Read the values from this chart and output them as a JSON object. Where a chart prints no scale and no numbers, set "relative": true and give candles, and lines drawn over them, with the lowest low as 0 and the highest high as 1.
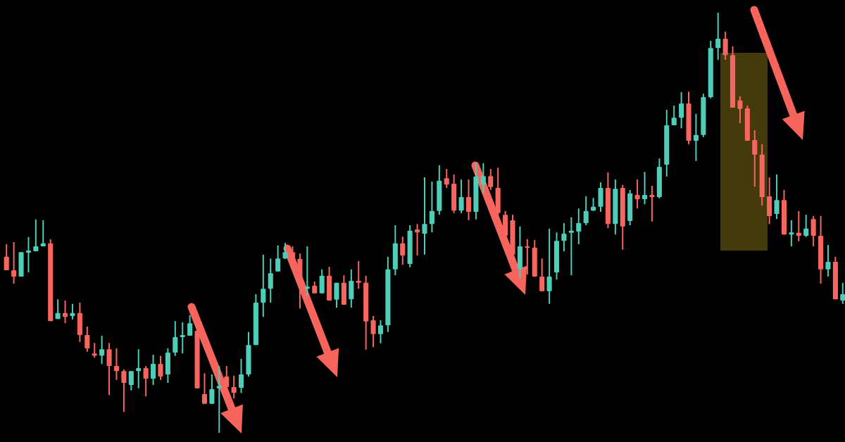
{
  "chart_data": {
    "type": "candlestick",
    "relative": true,
    "categories": [
      null,
      null,
      null,
      null,
      null,
      null,
      null,
      null,
      null,
      null,
      null,
      null,
      null,
      null,
      null,
      null,
      null,
      null,
      null,
      null,
      null,
      null,
      null,
      null,
      null,
      null,
      null,
      null,
      null,
      null,
      null,
      null,
      null,
      null,
      null,
      null,
      null,
      null,
      null,
      null,
      null,
      null,
      null,
      null,
      null,
      null,
      null,
      null,
      null,
      null,
      null,
      null,
      null,
      null,
      null,
      null,
      null,
      null,
      null,
      null,
      null,
      null,
      null,
      null,
      null,
      null,
      null,
      null,
      null,
      null,
      null,
      null,
      null,
      null,
      null,
      null,
      null,
      null,
      null,
      null,
      null,
      null,
      null,
      null,
      null,
      null,
      null,
      null,
      null,
      null,
      null,
      null,
      null,
      null,
      null,
      null,
      null,
      null,
      null,
      null,
      null,
      null,
      null,
      null,
      null,
      null,
      null,
      null,
      null,
      null,
      null,
      null,
      null,
      null,
      null
    ],
    "ohlc": [
      [
        0.419,
        0.449,
        0.387,
        0.387
      ],
      [
        0.387,
        0.454,
        0.355,
        0.372
      ],
      [
        0.372,
        0.43,
        0.372,
        0.43
      ],
      [
        0.429,
        0.466,
        0.382,
        0.434
      ],
      [
        0.432,
        0.508,
        0.432,
        0.444
      ],
      [
        0.444,
        0.506,
        0.444,
        0.451
      ],
      [
        0.451,
        0.461,
        0.266,
        0.266
      ],
      [
        0.271,
        0.318,
        0.271,
        0.285
      ],
      [
        0.285,
        0.315,
        0.261,
        0.276
      ],
      [
        0.278,
        0.307,
        0.27,
        0.285
      ],
      [
        0.285,
        0.31,
        0.216,
        0.233
      ],
      [
        0.233,
        0.253,
        0.193,
        0.201
      ],
      [
        0.189,
        0.214,
        0.179,
        0.184
      ],
      [
        0.184,
        0.231,
        0.164,
        0.199
      ],
      [
        0.199,
        0.214,
        0.09,
        0.159
      ],
      [
        0.159,
        0.201,
        0.126,
        0.147
      ],
      [
        0.147,
        0.151,
        0.05,
        0.119
      ],
      [
        0.114,
        0.147,
        0.101,
        0.147
      ],
      [
        0.147,
        0.199,
        0.106,
        0.154
      ],
      [
        0.154,
        0.159,
        0.087,
        0.129
      ],
      [
        0.129,
        0.186,
        0.114,
        0.164
      ],
      [
        0.164,
        0.183,
        0.126,
        0.134
      ],
      [
        0.139,
        0.201,
        0.119,
        0.191
      ],
      [
        0.191,
        0.266,
        0.183,
        0.228
      ],
      [
        0.228,
        0.263,
        0.189,
        0.233
      ],
      [
        0.231,
        0.28,
        0.231,
        0.261
      ],
      [
        0.243,
        0.26,
        0.106,
        0.106
      ],
      [
        0.092,
        0.142,
        0.069,
        0.069
      ],
      [
        0.069,
        0.139,
        0.069,
        0.104
      ],
      [
        0.106,
        0.159,
        0,
        0.112
      ],
      [
        0.134,
        0.159,
        0.092,
        0.109
      ],
      [
        0.109,
        0.136,
        0.082,
        0.095
      ],
      [
        0.107,
        0.176,
        0.095,
        0.139
      ],
      [
        0.139,
        0.24,
        0.134,
        0.209
      ],
      [
        0.209,
        0.33,
        0.209,
        0.31
      ],
      [
        0.31,
        0.424,
        0.276,
        0.343
      ],
      [
        0.343,
        0.415,
        0.31,
        0.38
      ],
      [
        0.384,
        0.446,
        0.384,
        0.415
      ],
      [
        0.415,
        0.452,
        0.414,
        0.43
      ],
      [
        0.43,
        0.444,
        0.41,
        0.414
      ],
      [
        0.414,
        0.427,
        0.296,
        0.352
      ],
      [
        0.343,
        0.444,
        0.327,
        0.348
      ],
      [
        0.35,
        0.36,
        0.332,
        0.332
      ],
      [
        0.332,
        0.389,
        0.332,
        0.374
      ],
      [
        0.374,
        0.395,
        0.315,
        0.315
      ],
      [
        0.317,
        0.357,
        0.298,
        0.357
      ],
      [
        0.357,
        0.375,
        0.305,
        0.305
      ],
      [
        0.318,
        0.389,
        0.298,
        0.362
      ],
      [
        0.362,
        0.409,
        0.343,
        0.357
      ],
      [
        0.357,
        0.374,
        0.198,
        0.265
      ],
      [
        0.268,
        0.278,
        0.204,
        0.235
      ],
      [
        0.235,
        0.268,
        0.213,
        0.256
      ],
      [
        0.256,
        0.419,
        0.24,
        0.389
      ],
      [
        0.389,
        0.494,
        0.375,
        0.451
      ],
      [
        0.451,
        0.467,
        0.4,
        0.422
      ],
      [
        0.402,
        0.494,
        0.394,
        0.481
      ],
      [
        0.484,
        0.497,
        0.422,
        0.477
      ],
      [
        0.474,
        0.608,
        0.424,
        0.497
      ],
      [
        0.497,
        0.598,
        0.477,
        0.528
      ],
      [
        0.528,
        0.637,
        0.519,
        0.6
      ],
      [
        0.606,
        0.628,
        0.583,
        0.591
      ],
      [
        0.593,
        0.615,
        0.523,
        0.529
      ],
      [
        0.529,
        0.603,
        0.523,
        0.561
      ],
      [
        0.561,
        0.603,
        0.506,
        0.526
      ],
      [
        0.526,
        0.642,
        0.508,
        0.61
      ],
      [
        0.591,
        0.642,
        0.57,
        0.611
      ],
      [
        0.611,
        0.628,
        0.578,
        0.585
      ],
      [
        0.583,
        0.631,
        0.519,
        0.523
      ],
      [
        0.519,
        0.528,
        0.461,
        0.469
      ],
      [
        0.506,
        0.519,
        0.397,
        0.424
      ],
      [
        0.389,
        0.491,
        0.369,
        0.444
      ],
      [
        0.444,
        0.461,
        0.377,
        0.441
      ],
      [
        0.441,
        0.459,
        0.372,
        0.372
      ],
      [
        0.372,
        0.415,
        0.337,
        0.337
      ],
      [
        0.337,
        0.486,
        0.307,
        0.372
      ],
      [
        0.382,
        0.477,
        0.365,
        0.457
      ],
      [
        0.457,
        0.499,
        0.432,
        0.474
      ],
      [
        0.476,
        0.513,
        0.375,
        0.481
      ],
      [
        0.479,
        0.534,
        0.449,
        0.499
      ],
      [
        0.499,
        0.563,
        0.494,
        0.528
      ],
      [
        0.529,
        0.559,
        0.528,
        0.538
      ],
      [
        0.538,
        0.596,
        0.526,
        0.583
      ],
      [
        0.583,
        0.62,
        0.487,
        0.497
      ],
      [
        0.497,
        0.603,
        0.472,
        0.581
      ],
      [
        0.583,
        0.59,
        0.436,
        0.491
      ],
      [
        0.504,
        0.578,
        0.494,
        0.57
      ],
      [
        0.566,
        0.603,
        0.534,
        0.556
      ],
      [
        0.556,
        0.621,
        0.544,
        0.566
      ],
      [
        0.566,
        0.588,
        0.503,
        0.561
      ],
      [
        0.561,
        0.653,
        0.558,
        0.633
      ],
      [
        0.638,
        0.769,
        0.61,
        0.732
      ],
      [
        0.732,
        0.779,
        0.732,
        0.75
      ],
      [
        0.75,
        0.811,
        0.725,
        0.784
      ],
      [
        0.784,
        0.812,
        0.687,
        0.695
      ],
      [
        0.695,
        0.759,
        0.647,
        0.709
      ],
      [
        0.709,
        0.807,
        0.704,
        0.799
      ],
      [
        0.799,
        0.933,
        0.796,
        0.916
      ],
      [
        0.916,
        1,
        0.888,
        0.938
      ],
      [
        0.938,
        0.955,
        0.888,
        0.899
      ],
      [
        0.899,
        0.92,
        0.774,
        0.774
      ],
      [
        0.791,
        0.801,
        0.737,
        0.771
      ],
      [
        0.772,
        0.779,
        0.695,
        0.695
      ],
      [
        0.697,
        0.72,
        0.586,
        0.662
      ],
      [
        0.662,
        0.687,
        0.541,
        0.561
      ],
      [
        0.563,
        0.608,
        0.497,
        0.516
      ],
      [
        0.521,
        0.615,
        0.509,
        0.554
      ],
      [
        0.554,
        0.578,
        0.472,
        0.472
      ],
      [
        0.472,
        0.506,
        0.444,
        0.477
      ],
      [
        0.476,
        0.528,
        0.456,
        0.469
      ],
      [
        0.469,
        0.519,
        0.466,
        0.486
      ],
      [
        0.509,
        0.516,
        0.444,
        0.469
      ],
      [
        0.469,
        0.516,
        0.355,
        0.389
      ],
      [
        0.389,
        0.447,
        0.372,
        0.407
      ],
      [
        0.407,
        0.419,
        0.318,
        0.318
      ],
      [
        0.315,
        0.357,
        0.307,
        0.33
      ]
    ],
    "colors": [
      "#f6665f",
      "#f6665f",
      "#4ecdb8",
      "#4ecdb8",
      "#4ecdb8",
      "#4ecdb8",
      "#f6665f",
      "#4ecdb8",
      "#f6665f",
      "#4ecdb8",
      "#f6665f",
      "#f6665f",
      "#f6665f",
      "#4ecdb8",
      "#f6665f",
      "#f6665f",
      "#f6665f",
      "#4ecdb8",
      "#4ecdb8",
      "#f6665f",
      "#4ecdb8",
      "#f6665f",
      "#4ecdb8",
      "#4ecdb8",
      "#4ecdb8",
      "#4ecdb8",
      "#f6665f",
      "#f6665f",
      "#4ecdb8",
      "#4ecdb8",
      "#f6665f",
      "#f6665f",
      "#4ecdb8",
      "#4ecdb8",
      "#4ecdb8",
      "#4ecdb8",
      "#4ecdb8",
      "#4ecdb8",
      "#4ecdb8",
      "#f6665f",
      "#f6665f",
      "#4ecdb8",
      "#f6665f",
      "#4ecdb8",
      "#f6665f",
      "#4ecdb8",
      "#f6665f",
      "#4ecdb8",
      "#f6665f",
      "#f6665f",
      "#f6665f",
      "#4ecdb8",
      "#4ecdb8",
      "#4ecdb8",
      "#f6665f",
      "#4ecdb8",
      "#f6665f",
      "#4ecdb8",
      "#4ecdb8",
      "#4ecdb8",
      "#f6665f",
      "#f6665f",
      "#4ecdb8",
      "#f6665f",
      "#4ecdb8",
      "#4ecdb8",
      "#f6665f",
      "#f6665f",
      "#f6665f",
      "#f6665f",
      "#4ecdb8",
      "#f6665f",
      "#f6665f",
      "#f6665f",
      "#4ecdb8",
      "#4ecdb8",
      "#4ecdb8",
      "#4ecdb8",
      "#4ecdb8",
      "#4ecdb8",
      "#4ecdb8",
      "#4ecdb8",
      "#f6665f",
      "#4ecdb8",
      "#f6665f",
      "#4ecdb8",
      "#f6665f",
      "#4ecdb8",
      "#f6665f",
      "#4ecdb8",
      "#4ecdb8",
      "#4ecdb8",
      "#4ecdb8",
      "#f6665f",
      "#4ecdb8",
      "#4ecdb8",
      "#4ecdb8",
      "#4ecdb8",
      "#f6665f",
      "#f6665f",
      "#f6665f",
      "#f6665f",
      "#f6665f",
      "#f6665f",
      "#f6665f",
      "#4ecdb8",
      "#f6665f",
      "#4ecdb8",
      "#f6665f",
      "#4ecdb8",
      "#f6665f",
      "#f6665f",
      "#4ecdb8",
      "#f6665f",
      "#4ecdb8"
    ]
  }
}
